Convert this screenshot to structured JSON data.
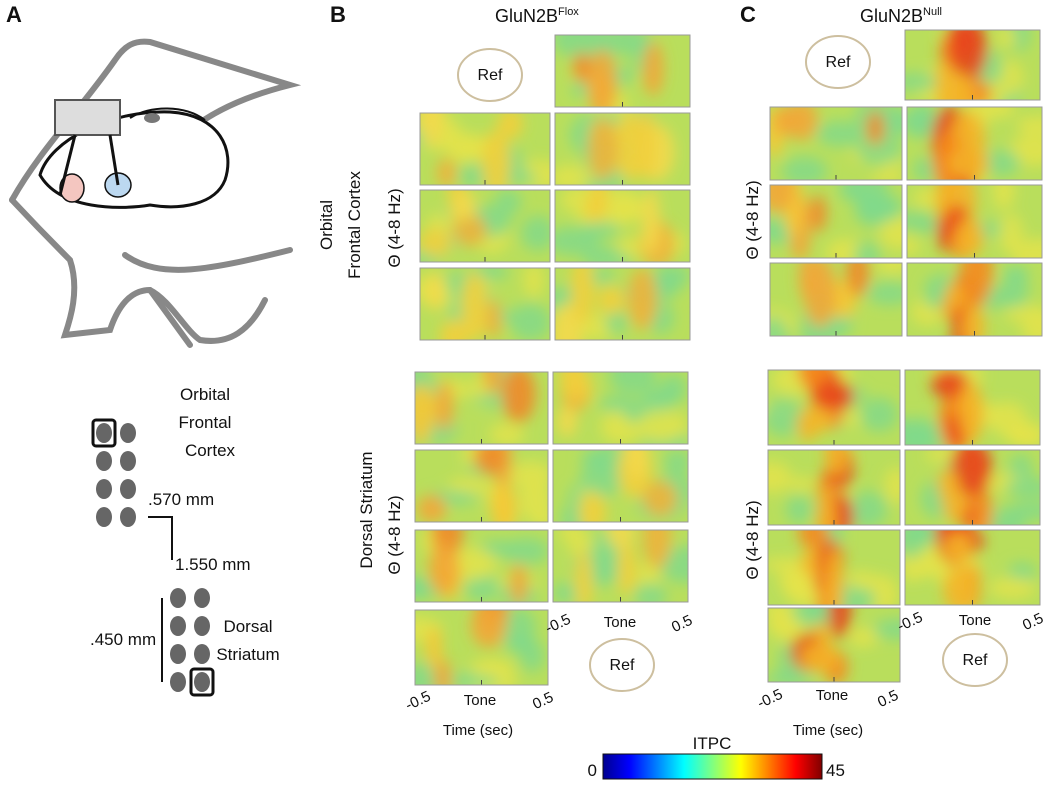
{
  "panel_labels": [
    "A",
    "B",
    "C"
  ],
  "panel_a": {
    "region_top": [
      "Orbital",
      "Frontal",
      "Cortex"
    ],
    "spacing_1": ".570 mm",
    "spacing_2": "1.550 mm",
    "spacing_3": ".450 mm",
    "region_bottom": [
      "Dorsal",
      "Striatum"
    ]
  },
  "panel_b": {
    "title": "GluN2B",
    "title_sup": "Flox",
    "ref": "Ref",
    "row_label_top": [
      "Orbital",
      "Frontal Cortex"
    ],
    "band": "Θ (4-8 Hz)",
    "row_label_bottom": "Dorsal Striatum",
    "x_ticks": [
      "-0.5",
      "Tone",
      "0.5"
    ],
    "x_label": "Time (sec)"
  },
  "panel_c": {
    "title": "GluN2B",
    "title_sup": "Null",
    "ref": "Ref",
    "band": "Θ (4-8 Hz)",
    "x_ticks": [
      "-0.5",
      "Tone",
      "0.5"
    ],
    "x_label": "Time (sec)"
  },
  "colorbar": {
    "label": "ITPC",
    "min": 0,
    "max": 45
  }
}
